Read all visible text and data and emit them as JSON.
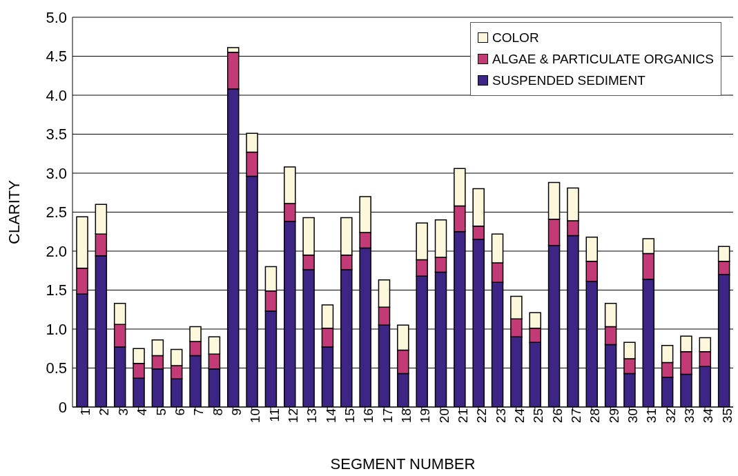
{
  "chart_data": {
    "type": "bar",
    "stacked": true,
    "xlabel": "SEGMENT NUMBER",
    "ylabel": "CLARITY",
    "categories": [
      "1",
      "2",
      "3",
      "4",
      "5",
      "6",
      "7",
      "8",
      "9",
      "10",
      "11",
      "12",
      "13",
      "14",
      "15",
      "16",
      "17",
      "18",
      "19",
      "20",
      "21",
      "22",
      "23",
      "24",
      "25",
      "26",
      "27",
      "28",
      "29",
      "30",
      "31",
      "32",
      "33",
      "34",
      "35"
    ],
    "series": [
      {
        "name": "SUSPENDED SEDIMENT",
        "color": "#3d2585",
        "values": [
          1.45,
          1.94,
          0.77,
          0.37,
          0.49,
          0.36,
          0.66,
          0.49,
          4.08,
          2.96,
          1.23,
          2.38,
          1.76,
          0.77,
          1.76,
          2.04,
          1.05,
          0.43,
          1.68,
          1.73,
          2.25,
          2.15,
          1.6,
          0.9,
          0.83,
          2.07,
          2.2,
          1.61,
          0.8,
          0.43,
          1.64,
          0.38,
          0.42,
          0.52,
          1.7
        ]
      },
      {
        "name": "ALGAE & PARTICULATE ORGANICS",
        "color": "#c23b76",
        "values": [
          0.33,
          0.28,
          0.29,
          0.19,
          0.17,
          0.17,
          0.18,
          0.19,
          0.47,
          0.31,
          0.26,
          0.23,
          0.19,
          0.24,
          0.19,
          0.2,
          0.23,
          0.3,
          0.21,
          0.19,
          0.33,
          0.17,
          0.25,
          0.23,
          0.18,
          0.34,
          0.19,
          0.26,
          0.23,
          0.19,
          0.33,
          0.19,
          0.29,
          0.19,
          0.17
        ]
      },
      {
        "name": "COLOR",
        "color": "#fdf8dc",
        "values": [
          0.66,
          0.38,
          0.27,
          0.19,
          0.2,
          0.21,
          0.19,
          0.22,
          0.06,
          0.24,
          0.31,
          0.47,
          0.48,
          0.3,
          0.48,
          0.46,
          0.35,
          0.32,
          0.47,
          0.48,
          0.48,
          0.48,
          0.37,
          0.29,
          0.2,
          0.47,
          0.42,
          0.31,
          0.3,
          0.21,
          0.19,
          0.22,
          0.2,
          0.18,
          0.19
        ]
      }
    ],
    "ylim": [
      0,
      5
    ],
    "yticks": [
      0,
      {
        "value": 0.5,
        "label": "0.5"
      },
      {
        "value": 1,
        "label": "1.0"
      },
      {
        "value": 1.5,
        "label": "1.5"
      },
      {
        "value": 2,
        "label": "2.0"
      },
      {
        "value": 2.5,
        "label": "2.5"
      },
      {
        "value": 3,
        "label": "3.0"
      },
      {
        "value": 3.5,
        "label": "3.5"
      },
      {
        "value": 4,
        "label": "4.0"
      },
      {
        "value": 4.5,
        "label": "4.5"
      },
      {
        "value": 5,
        "label": "5.0"
      }
    ],
    "grid": "y",
    "legend": "top right"
  }
}
